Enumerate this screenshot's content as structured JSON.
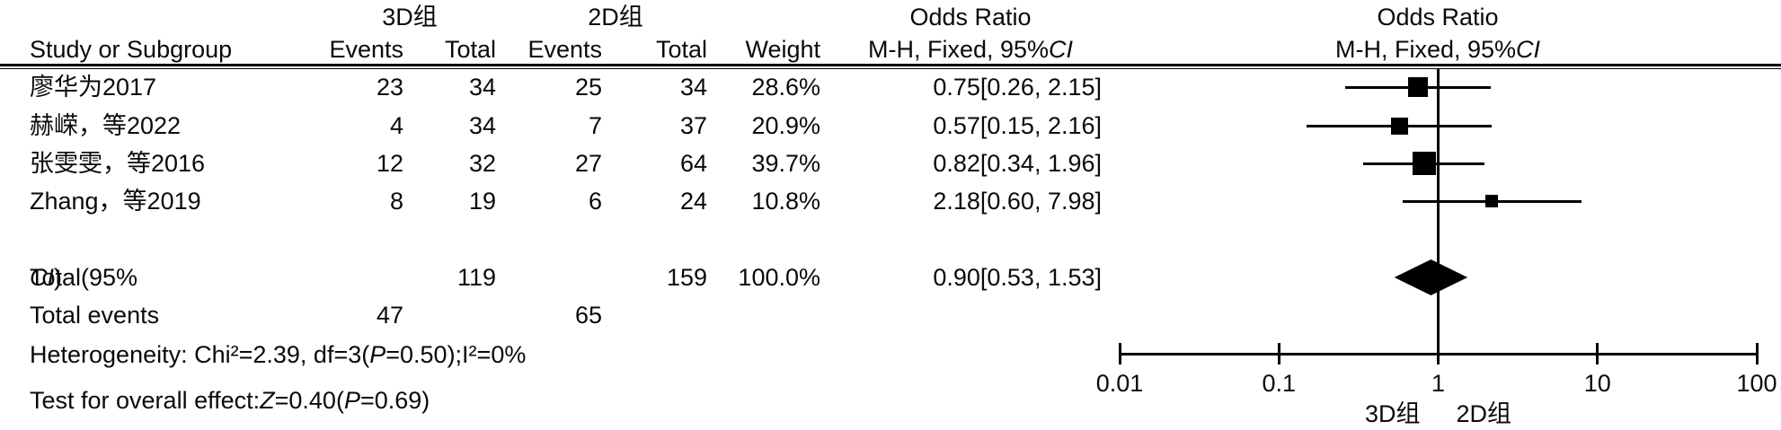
{
  "header": {
    "study_col": "Study or Subgroup",
    "group1": "3D组",
    "group2": "2D组",
    "events": "Events",
    "total": "Total",
    "weight": "Weight",
    "or_title": "Odds Ratio",
    "or_method_prefix": "M-H, Fixed, 95%",
    "or_method_ci": "CI"
  },
  "table": {
    "rows": [
      {
        "study": "廖华为2017",
        "e3": "23",
        "t3": "34",
        "e2": "25",
        "t2": "34",
        "weight": "28.6%",
        "or": "0.75[0.26, 2.15]"
      },
      {
        "study": "赫嵘，等2022",
        "e3": "4",
        "t3": "34",
        "e2": "7",
        "t2": "37",
        "weight": "20.9%",
        "or": "0.57[0.15, 2.16]"
      },
      {
        "study": "张雯雯，等2016",
        "e3": "12",
        "t3": "32",
        "e2": "27",
        "t2": "64",
        "weight": "39.7%",
        "or": "0.82[0.34, 1.96]"
      },
      {
        "study": "Zhang，等2019",
        "e3": "8",
        "t3": "19",
        "e2": "6",
        "t2": "24",
        "weight": "10.8%",
        "or": "2.18[0.60, 7.98]"
      }
    ],
    "total_row": {
      "label_prefix": "Total(95%",
      "label_ci": "CI",
      "label_suffix": ")",
      "t3": "119",
      "t2": "159",
      "weight": "100.0%",
      "or": "0.90[0.53, 1.53]"
    },
    "total_events": {
      "label": "Total events",
      "e3": "47",
      "e2": "65"
    },
    "heterogeneity": {
      "p1": "Heterogeneity: Chi²=2.39, df=3(",
      "p2": "P",
      "p3": "=0.50);I²=0%"
    },
    "overall": {
      "p1": "Test for overall effect:",
      "p2": "Z",
      "p3": "=0.40(",
      "p4": "P",
      "p5": "=0.69)"
    }
  },
  "chart_data": {
    "type": "forest",
    "title": "Odds Ratio",
    "subtitle": "M-H, Fixed, 95%CI",
    "x_scale": "log",
    "xlim": [
      0.01,
      100
    ],
    "x_ticks": [
      0.01,
      0.1,
      1,
      10,
      100
    ],
    "x_tick_labels": [
      "0.01",
      "0.1",
      "1",
      "10",
      "100"
    ],
    "null_value": 1,
    "studies": [
      {
        "label": "廖华为2017",
        "or": 0.75,
        "ci_low": 0.26,
        "ci_high": 2.15,
        "weight_pct": 28.6
      },
      {
        "label": "赫嵘，等2022",
        "or": 0.57,
        "ci_low": 0.15,
        "ci_high": 2.16,
        "weight_pct": 20.9
      },
      {
        "label": "张雯雯，等2016",
        "or": 0.82,
        "ci_low": 0.34,
        "ci_high": 1.96,
        "weight_pct": 39.7
      },
      {
        "label": "Zhang，等2019",
        "or": 2.18,
        "ci_low": 0.6,
        "ci_high": 7.98,
        "weight_pct": 10.8
      }
    ],
    "total": {
      "or": 0.9,
      "ci_low": 0.53,
      "ci_high": 1.53,
      "weight_pct": 100.0
    },
    "favours_left": "3D组",
    "favours_right": "2D组",
    "colors": {
      "marker": "#000000",
      "line": "#000000",
      "text": "#0a0a0a"
    }
  }
}
